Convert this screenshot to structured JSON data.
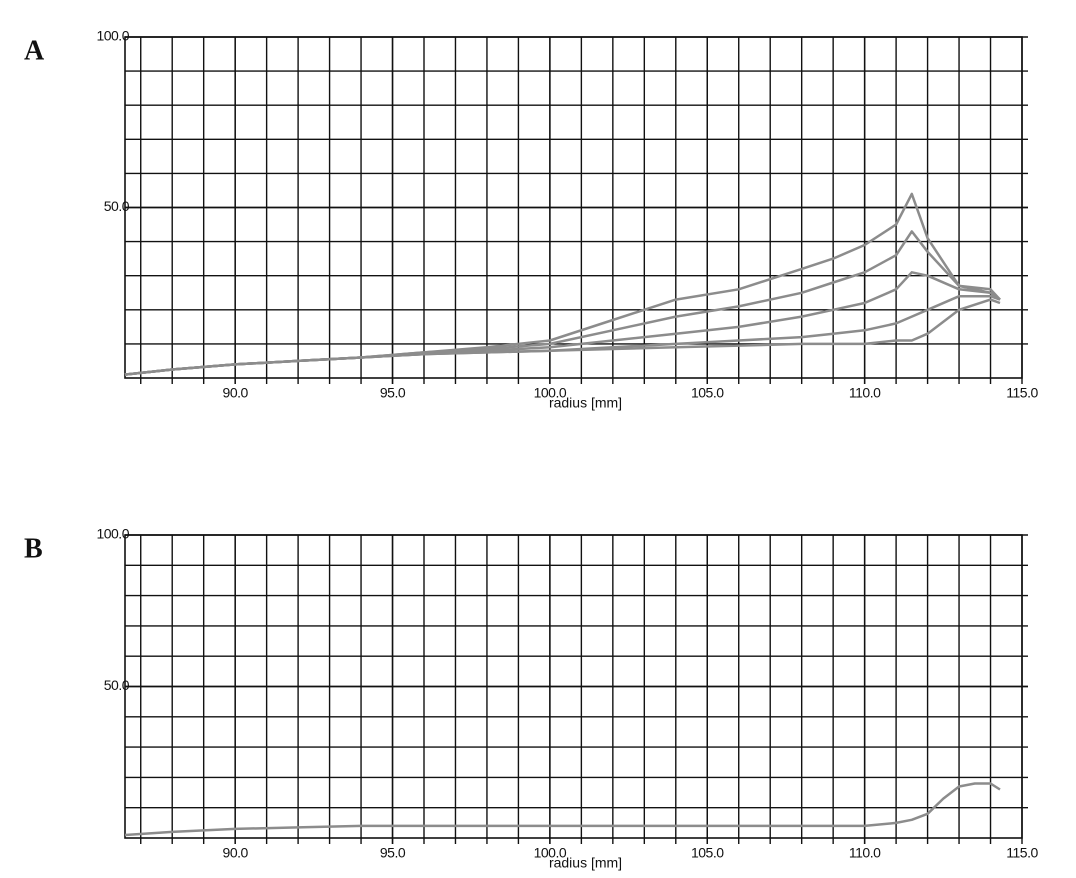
{
  "chart_data": [
    {
      "type": "line",
      "panel": "A",
      "xlabel": "radius [mm]",
      "color": "#8c8c8c",
      "grid": true,
      "x": [
        86.5,
        88,
        90,
        92,
        94,
        96,
        98,
        100,
        102,
        104,
        106,
        108,
        109,
        110,
        111,
        111.5,
        112,
        113,
        114,
        114.3
      ],
      "series": [
        {
          "values": [
            1,
            2.5,
            4,
            5,
            6,
            7.5,
            9,
            11,
            17,
            23,
            26,
            32,
            35,
            39,
            45,
            54,
            41,
            27,
            26,
            23
          ]
        },
        {
          "values": [
            1,
            2.5,
            4,
            5,
            6,
            7.5,
            8.5,
            10,
            14,
            18,
            21,
            25,
            28,
            31,
            36,
            43,
            37,
            27,
            25,
            23
          ]
        },
        {
          "values": [
            1,
            2.5,
            4,
            5,
            6,
            7,
            8,
            9,
            11,
            13,
            15,
            18,
            20,
            22,
            26,
            31,
            30,
            26,
            25,
            23
          ]
        },
        {
          "values": [
            1,
            2.5,
            4,
            5,
            6,
            7,
            7.5,
            8,
            9,
            10,
            11,
            12,
            13,
            14,
            16,
            18,
            20,
            24,
            24,
            23
          ]
        },
        {
          "values": [
            1,
            2.5,
            4,
            5,
            6,
            7,
            7.5,
            8,
            8.5,
            9,
            9.5,
            10,
            10,
            10,
            11,
            11,
            13,
            20,
            23,
            22
          ]
        }
      ],
      "xlim": [
        86.5,
        115
      ],
      "ylim": [
        0,
        100
      ],
      "xticks": [
        {
          "value": 90,
          "label": "90.0"
        },
        {
          "value": 95,
          "label": "95.0"
        },
        {
          "value": 100,
          "label": "100.0"
        },
        {
          "value": 105,
          "label": "105.0"
        },
        {
          "value": 110,
          "label": "110.0"
        },
        {
          "value": 115,
          "label": "115.0"
        }
      ],
      "yticks": [
        {
          "value": 50,
          "label": "50.0"
        },
        {
          "value": 100,
          "label": "100.0"
        }
      ],
      "xminor": [
        87,
        88,
        89,
        90,
        91,
        92,
        93,
        94,
        95,
        96,
        97,
        98,
        99,
        100,
        101,
        102,
        103,
        104,
        105,
        106,
        107,
        108,
        109,
        110,
        111,
        112,
        113,
        114
      ],
      "yminor": [
        10,
        20,
        30,
        40,
        50,
        60,
        70,
        80,
        90
      ]
    },
    {
      "type": "line",
      "panel": "B",
      "xlabel": "radius [mm]",
      "color": "#8c8c8c",
      "grid": true,
      "x": [
        86.5,
        88,
        90,
        92,
        94,
        96,
        98,
        100,
        102,
        104,
        106,
        108,
        110,
        111,
        111.5,
        112,
        112.5,
        113,
        113.5,
        114,
        114.3
      ],
      "series": [
        {
          "values": [
            1,
            2,
            3,
            3.5,
            4,
            4,
            4,
            4,
            4,
            4,
            4,
            4,
            4,
            5,
            6,
            8,
            13,
            17,
            18,
            18,
            16
          ]
        }
      ],
      "xlim": [
        86.5,
        115
      ],
      "ylim": [
        0,
        100
      ],
      "xticks": [
        {
          "value": 90,
          "label": "90.0"
        },
        {
          "value": 95,
          "label": "95.0"
        },
        {
          "value": 100,
          "label": "100.0"
        },
        {
          "value": 105,
          "label": "105.0"
        },
        {
          "value": 110,
          "label": "110.0"
        },
        {
          "value": 115,
          "label": "115.0"
        }
      ],
      "yticks": [
        {
          "value": 50,
          "label": "50.0"
        },
        {
          "value": 100,
          "label": "100.0"
        }
      ],
      "xminor": [
        87,
        88,
        89,
        90,
        91,
        92,
        93,
        94,
        95,
        96,
        97,
        98,
        99,
        100,
        101,
        102,
        103,
        104,
        105,
        106,
        107,
        108,
        109,
        110,
        111,
        112,
        113,
        114
      ],
      "yminor": [
        10,
        20,
        30,
        40,
        50,
        60,
        70,
        80,
        90
      ]
    }
  ]
}
